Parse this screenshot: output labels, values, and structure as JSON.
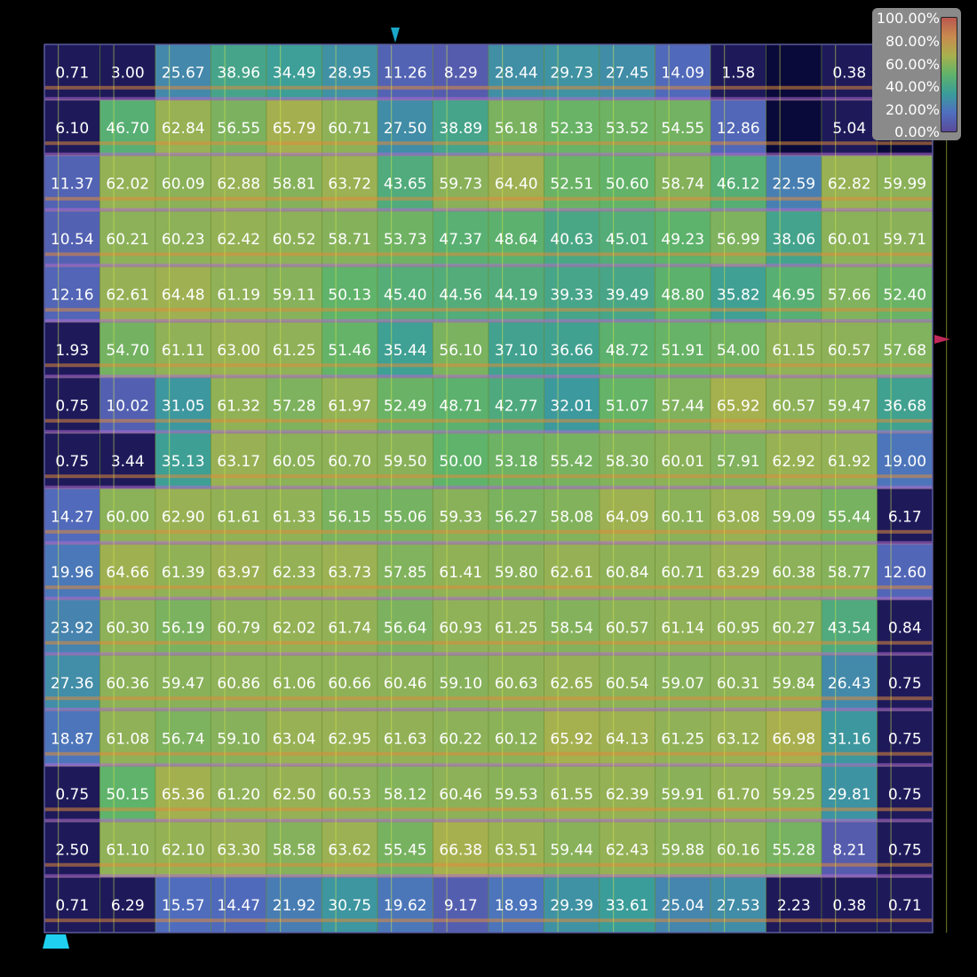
{
  "chart_data": {
    "type": "heatmap",
    "rows": 16,
    "cols": 16,
    "value_suffix": "",
    "empty_cell": "",
    "values": [
      [
        0.71,
        3.0,
        25.67,
        38.96,
        34.49,
        28.95,
        11.26,
        8.29,
        28.44,
        29.73,
        27.45,
        14.09,
        1.58,
        null,
        0.38,
        null
      ],
      [
        6.1,
        46.7,
        62.84,
        56.55,
        65.79,
        60.71,
        27.5,
        38.89,
        56.18,
        52.33,
        53.52,
        54.55,
        12.86,
        null,
        5.04,
        null
      ],
      [
        11.37,
        62.02,
        60.09,
        62.88,
        58.81,
        63.72,
        43.65,
        59.73,
        64.4,
        52.51,
        50.6,
        58.74,
        46.12,
        22.59,
        62.82,
        59.99
      ],
      [
        10.54,
        60.21,
        60.23,
        62.42,
        60.52,
        58.71,
        53.73,
        47.37,
        48.64,
        40.63,
        45.01,
        49.23,
        56.99,
        38.06,
        60.01,
        59.71
      ],
      [
        12.16,
        62.61,
        64.48,
        61.19,
        59.11,
        50.13,
        45.4,
        44.56,
        44.19,
        39.33,
        39.49,
        48.8,
        35.82,
        46.95,
        57.66,
        52.4
      ],
      [
        1.93,
        54.7,
        61.11,
        63.0,
        61.25,
        51.46,
        35.44,
        56.1,
        37.1,
        36.66,
        48.72,
        51.91,
        54.0,
        61.15,
        60.57,
        57.68
      ],
      [
        0.75,
        10.02,
        31.05,
        61.32,
        57.28,
        61.97,
        52.49,
        48.71,
        42.77,
        32.01,
        51.07,
        57.44,
        65.92,
        60.57,
        59.47,
        36.68
      ],
      [
        0.75,
        3.44,
        35.13,
        63.17,
        60.05,
        60.7,
        59.5,
        50.0,
        53.18,
        55.42,
        58.3,
        60.01,
        57.91,
        62.92,
        61.92,
        19.0
      ],
      [
        14.27,
        60.0,
        62.9,
        61.61,
        61.33,
        56.15,
        55.06,
        59.33,
        56.27,
        58.08,
        64.09,
        60.11,
        63.08,
        59.09,
        55.44,
        6.17
      ],
      [
        19.96,
        64.66,
        61.39,
        63.97,
        62.33,
        63.73,
        57.85,
        61.41,
        59.8,
        62.61,
        60.84,
        60.71,
        63.29,
        60.38,
        58.77,
        12.6
      ],
      [
        23.92,
        60.3,
        56.19,
        60.79,
        62.02,
        61.74,
        56.64,
        60.93,
        61.25,
        58.54,
        60.57,
        61.14,
        60.95,
        60.27,
        43.54,
        0.84
      ],
      [
        27.36,
        60.36,
        59.47,
        60.86,
        61.06,
        60.66,
        60.46,
        59.1,
        60.63,
        62.65,
        60.54,
        59.07,
        60.31,
        59.84,
        26.43,
        0.75
      ],
      [
        18.87,
        61.08,
        56.74,
        59.1,
        63.04,
        62.95,
        61.63,
        60.22,
        60.12,
        65.92,
        64.13,
        61.25,
        63.12,
        66.98,
        31.16,
        0.75
      ],
      [
        0.75,
        50.15,
        65.36,
        61.2,
        62.5,
        60.53,
        58.12,
        60.46,
        59.53,
        61.55,
        62.39,
        59.91,
        61.7,
        59.25,
        29.81,
        0.75
      ],
      [
        2.5,
        61.1,
        62.1,
        63.3,
        58.58,
        63.62,
        55.45,
        66.38,
        63.51,
        59.44,
        62.43,
        59.88,
        60.16,
        55.28,
        8.21,
        0.75
      ],
      [
        0.71,
        6.29,
        15.57,
        14.47,
        21.92,
        30.75,
        19.62,
        9.17,
        18.93,
        29.39,
        33.61,
        25.04,
        27.53,
        2.23,
        0.38,
        0.71
      ]
    ],
    "zlim": [
      0,
      100
    ],
    "colorbar": {
      "tick_labels": [
        "100.00%",
        "80.00%",
        "60.00%",
        "40.00%",
        "20.00%",
        "0.00%"
      ],
      "colors": [
        "#b9584f",
        "#c98a4f",
        "#a8b04e",
        "#5fb36a",
        "#3a9d9a",
        "#4f6fc0",
        "#5a4a9a"
      ],
      "placement": "top-right"
    },
    "title": "",
    "xlabel": "",
    "ylabel": "",
    "grid": true
  },
  "markers": {
    "top": "#1aa6c8",
    "right": "#c0285a",
    "bottom_left": "#1fd0f0"
  }
}
